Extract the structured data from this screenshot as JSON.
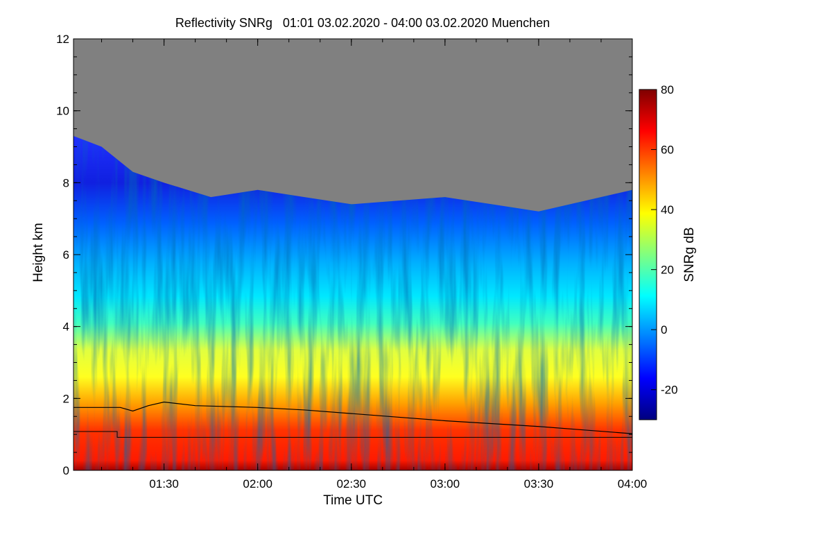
{
  "chart_data": {
    "type": "heatmap",
    "title": "Reflectivity SNRg   01:01 03.02.2020 - 04:00 03.02.2020 Muenchen",
    "xlabel": "Time UTC",
    "ylabel": "Height km",
    "xlim": [
      "01:01",
      "04:00"
    ],
    "ylim": [
      0,
      12
    ],
    "x_ticks": [
      "01:30",
      "02:00",
      "02:30",
      "03:00",
      "03:30",
      "04:00"
    ],
    "y_ticks": [
      "0",
      "2",
      "4",
      "6",
      "8",
      "10",
      "12"
    ],
    "colorbar": {
      "label": "SNRg dB",
      "range": [
        -30,
        80
      ],
      "ticks": [
        "-20",
        "0",
        "20",
        "40",
        "60",
        "80"
      ],
      "colors": [
        "#00007f",
        "#0000ff",
        "#0080ff",
        "#00ffff",
        "#80ff80",
        "#ffff00",
        "#ff8000",
        "#ff0000",
        "#7f0000"
      ]
    },
    "no_signal_color": "#808080",
    "signal_top_km": {
      "time": [
        "01:01",
        "01:10",
        "01:20",
        "01:30",
        "01:45",
        "02:00",
        "02:15",
        "02:30",
        "02:45",
        "03:00",
        "03:15",
        "03:30",
        "03:45",
        "04:00"
      ],
      "height_km": [
        9.3,
        9.0,
        8.3,
        8.0,
        7.6,
        7.8,
        7.6,
        7.4,
        7.5,
        7.6,
        7.4,
        7.2,
        7.5,
        7.8
      ]
    },
    "mixing_layer_km": {
      "time": [
        "01:01",
        "01:10",
        "01:16",
        "01:20",
        "01:25",
        "01:30",
        "01:40",
        "02:00",
        "02:15",
        "02:30",
        "02:45",
        "03:00",
        "03:15",
        "03:30",
        "03:45",
        "04:00"
      ],
      "height_km": [
        1.75,
        1.75,
        1.75,
        1.65,
        1.8,
        1.9,
        1.8,
        1.75,
        1.68,
        1.58,
        1.48,
        1.38,
        1.3,
        1.22,
        1.12,
        1.02
      ]
    },
    "lower_layer_km": {
      "time": [
        "01:01",
        "01:15",
        "01:15",
        "04:00"
      ],
      "height_km": [
        1.08,
        1.08,
        0.92,
        0.92
      ]
    }
  }
}
